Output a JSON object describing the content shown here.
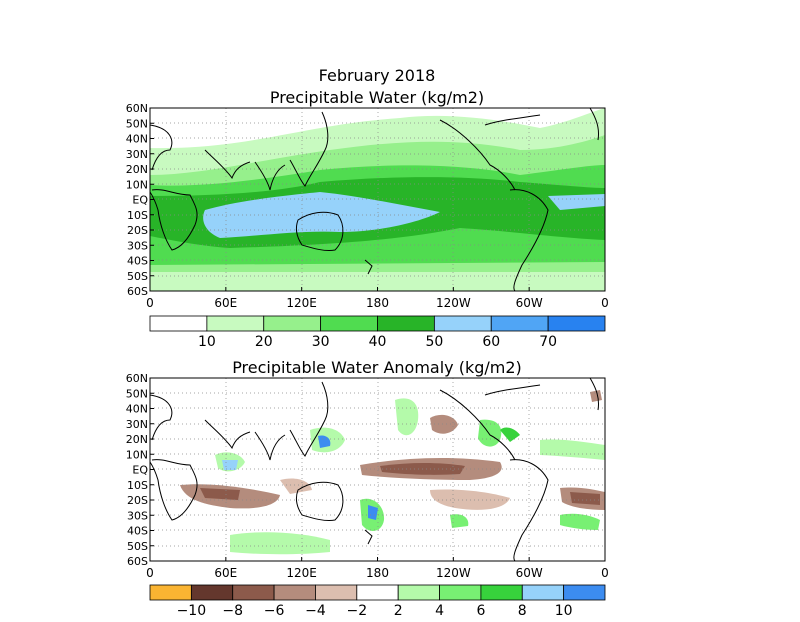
{
  "header": {
    "date_title": "February 2018",
    "top_title": "Precipitable Water (kg/m2)",
    "bottom_title": "Precipitable Water Anomaly (kg/m2)"
  },
  "axes": {
    "lat_labels": [
      "60N",
      "50N",
      "40N",
      "30N",
      "20N",
      "10N",
      "EQ",
      "10S",
      "20S",
      "30S",
      "40S",
      "50S",
      "60S"
    ],
    "lon_labels": [
      "0",
      "60E",
      "120E",
      "180",
      "120W",
      "60W",
      "0"
    ]
  },
  "legend_top": {
    "labels": [
      "10",
      "20",
      "30",
      "40",
      "50",
      "60",
      "70"
    ],
    "colors": [
      "#ffffff",
      "#c8fac0",
      "#96f08c",
      "#50dc50",
      "#28b428",
      "#96d2fa",
      "#50a5f5",
      "#2882f0"
    ]
  },
  "legend_bottom": {
    "labels": [
      "−10",
      "−8",
      "−6",
      "−4",
      "−2",
      "2",
      "4",
      "6",
      "8",
      "10"
    ],
    "colors": [
      "#fab432",
      "#64372d",
      "#8c5a4b",
      "#b48c7d",
      "#dcbeaf",
      "#ffffff",
      "#b4faaa",
      "#78f073",
      "#37d23c",
      "#96d2fa",
      "#3c8cf0"
    ]
  },
  "map_colors": {
    "land_outline": "#000000",
    "grid": "#888888"
  }
}
